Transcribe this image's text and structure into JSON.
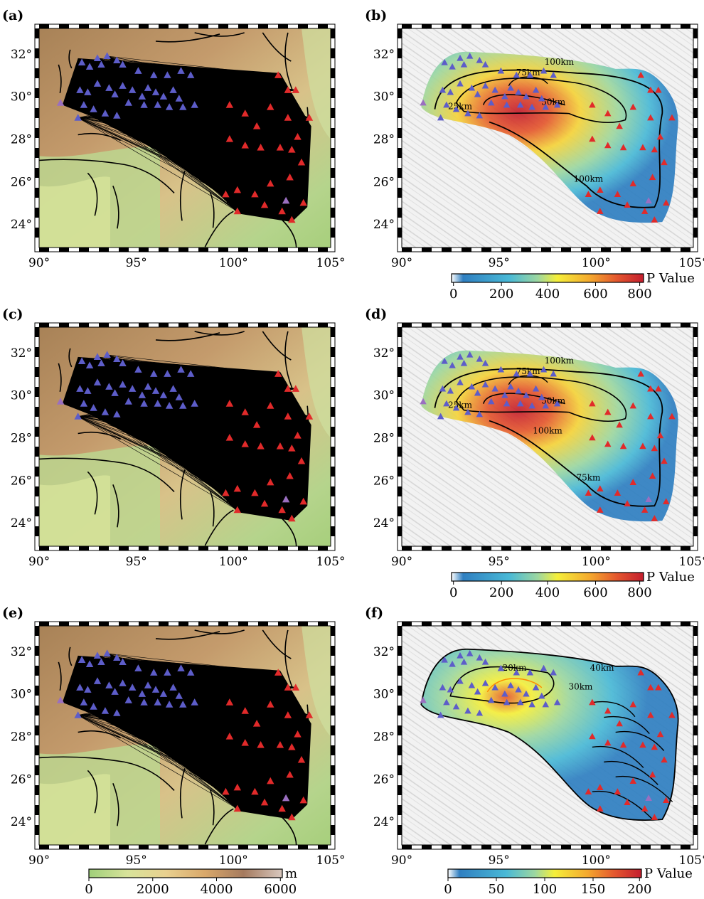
{
  "panels": [
    {
      "label": "(a)",
      "type": "topo"
    },
    {
      "label": "(b)",
      "type": "pvalue",
      "contours": [
        "100km",
        "75km",
        "50km",
        "25km",
        "100km"
      ],
      "colorbar": "pvalue_800"
    },
    {
      "label": "(c)",
      "type": "topo"
    },
    {
      "label": "(d)",
      "type": "pvalue",
      "contours": [
        "100km",
        "75km",
        "50km",
        "25km",
        "75km",
        "100km"
      ],
      "colorbar": "pvalue_800"
    },
    {
      "label": "(e)",
      "type": "topo",
      "colorbar": "elevation"
    },
    {
      "label": "(f)",
      "type": "pvalue",
      "contours": [
        "40km",
        "30km",
        "20km"
      ],
      "colorbar": "pvalue_200"
    }
  ],
  "axes": {
    "lon_ticks": [
      "90°",
      "95°",
      "100°",
      "105°"
    ],
    "lat_ticks": [
      "32°",
      "30°",
      "28°",
      "26°",
      "24°"
    ]
  },
  "colorbars": {
    "pvalue_800": {
      "ticks": [
        "0",
        "200",
        "400",
        "600",
        "800"
      ],
      "unit": "P Value",
      "colors": [
        "#ffffff",
        "#2f7fc1",
        "#49b9d6",
        "#9dd7a0",
        "#f5ef3a",
        "#f4a92e",
        "#e4572e",
        "#c41e2e"
      ]
    },
    "pvalue_200": {
      "ticks": [
        "0",
        "50",
        "100",
        "150",
        "200"
      ],
      "unit": "P Value",
      "colors": [
        "#ffffff",
        "#2f7fc1",
        "#49b9d6",
        "#9dd7a0",
        "#f5ef3a",
        "#f4a92e",
        "#e4572e",
        "#c41e2e"
      ]
    },
    "elevation": {
      "ticks": [
        "0",
        "2000",
        "4000",
        "6000"
      ],
      "unit": "m",
      "colors": [
        "#9fcf7a",
        "#d8e39a",
        "#e9d08f",
        "#d9a86a",
        "#b98757",
        "#a57a5e",
        "#d8c8bf"
      ]
    }
  },
  "colors": {
    "west_station": "#5d5dc9",
    "east_station": "#e12a2a",
    "special_station": "#9a6fc0",
    "topo_low": "#b9d88a",
    "topo_high": "#b28a5c",
    "relief": "#e6e6e6"
  }
}
